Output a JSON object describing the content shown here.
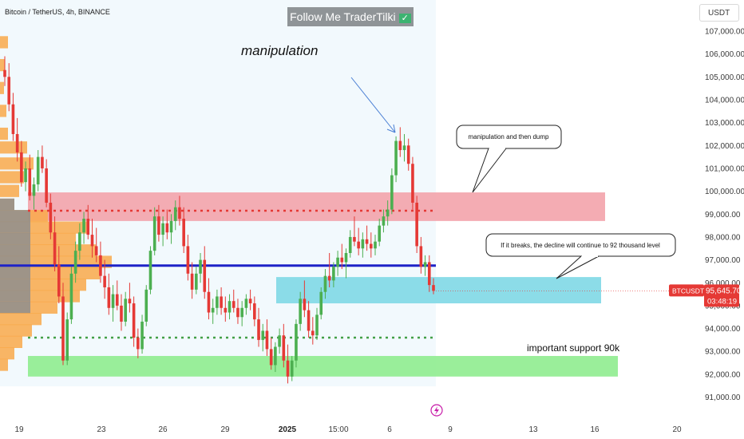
{
  "header": {
    "symbol_title": "Bitcoin / TetherUS, 4h, BINANCE",
    "follow_label": "Follow Me TraderTilki",
    "follow_check": "✓",
    "currency_button": "USDT"
  },
  "annotations": {
    "manipulation_title": "manipulation",
    "callout_1": "manipulation and then dump",
    "callout_2": "If it breaks, the decline will continue to 92 thousand level",
    "support_label": "important support 90k"
  },
  "price_badge": {
    "symbol": "BTCUSDT",
    "price": "95,645.70",
    "countdown": "03:48:19"
  },
  "colors": {
    "up": "#4caf50",
    "down": "#e53935",
    "resistance_zone": "#f3a3ab",
    "current_zone": "#7fd8e6",
    "support_zone": "#8fec8f",
    "blue_line": "#1e23c8",
    "volume_profile": "#f9a94a",
    "volume_profile_gray": "#8e8e8e",
    "badge": "#e53935"
  },
  "chart_data": {
    "type": "candlestick",
    "title": "Bitcoin / TetherUS, 4h, BINANCE",
    "xlabel": "",
    "ylabel": "",
    "ylim": [
      90500,
      107600
    ],
    "yticks": [
      91000,
      92000,
      93000,
      94000,
      95000,
      96000,
      97000,
      98000,
      99000,
      100000,
      101000,
      102000,
      103000,
      104000,
      105000,
      106000,
      107000
    ],
    "ytick_labels": [
      "91,000.00",
      "92,000.00",
      "93,000.00",
      "94,000.00",
      "95,000.00",
      "96,000.00",
      "97,000.00",
      "98,000.00",
      "99,000.00",
      "100,000.00",
      "101,000.00",
      "102,000.00",
      "103,000.00",
      "104,000.00",
      "105,000.00",
      "106,000.00",
      "107,000.00"
    ],
    "xticks": [
      "19",
      "23",
      "26",
      "29",
      "2025",
      "15:00",
      "6",
      "9",
      "13",
      "16",
      "20"
    ],
    "last_price": 95645.7,
    "levels": {
      "blue_line": 96750,
      "red_dotted": 99150,
      "green_dotted": 93600
    },
    "zones": [
      {
        "name": "resistance",
        "from": 98700,
        "to": 99950
      },
      {
        "name": "current",
        "from": 95100,
        "to": 96250
      },
      {
        "name": "support",
        "from": 91900,
        "to": 92800
      }
    ],
    "candles": [
      [
        105300,
        105900,
        104600,
        105000
      ],
      [
        105000,
        105600,
        103500,
        103800
      ],
      [
        103800,
        104300,
        102200,
        102500
      ],
      [
        102500,
        103200,
        101300,
        101700
      ],
      [
        101700,
        102200,
        100200,
        100400
      ],
      [
        100400,
        101300,
        100000,
        101000
      ],
      [
        101000,
        101600,
        99600,
        99800
      ],
      [
        99800,
        100600,
        99200,
        100300
      ],
      [
        100300,
        101800,
        100000,
        101500
      ],
      [
        101500,
        102000,
        100800,
        101000
      ],
      [
        101000,
        101400,
        99300,
        99500
      ],
      [
        99500,
        99900,
        97900,
        98200
      ],
      [
        98200,
        98900,
        96500,
        96800
      ],
      [
        96800,
        97600,
        95100,
        95400
      ],
      [
        95400,
        96000,
        92400,
        92600
      ],
      [
        92600,
        94700,
        92400,
        94400
      ],
      [
        94400,
        96700,
        94200,
        96400
      ],
      [
        96400,
        97800,
        96000,
        97400
      ],
      [
        97400,
        98600,
        97000,
        98200
      ],
      [
        98200,
        99100,
        97700,
        98800
      ],
      [
        98800,
        99400,
        97900,
        98100
      ],
      [
        98100,
        98800,
        97100,
        97600
      ],
      [
        97600,
        98400,
        96900,
        97200
      ],
      [
        97200,
        97800,
        96000,
        96300
      ],
      [
        96300,
        97000,
        95300,
        95800
      ],
      [
        95800,
        96400,
        94600,
        94900
      ],
      [
        94900,
        95900,
        94300,
        95500
      ],
      [
        95500,
        96100,
        94800,
        95000
      ],
      [
        95000,
        95500,
        93900,
        94300
      ],
      [
        94300,
        95600,
        94100,
        95300
      ],
      [
        95300,
        96000,
        94700,
        95100
      ],
      [
        95100,
        95400,
        93200,
        93600
      ],
      [
        93600,
        94000,
        92700,
        93100
      ],
      [
        93100,
        94600,
        92900,
        94300
      ],
      [
        94300,
        95900,
        94100,
        95700
      ],
      [
        95700,
        97600,
        95500,
        97400
      ],
      [
        97400,
        99300,
        97200,
        98900
      ],
      [
        98900,
        99400,
        97800,
        98100
      ],
      [
        98100,
        98900,
        97600,
        98600
      ],
      [
        98600,
        99200,
        97900,
        98200
      ],
      [
        98200,
        99000,
        97700,
        98700
      ],
      [
        98700,
        99600,
        98300,
        99300
      ],
      [
        99300,
        99800,
        98500,
        98800
      ],
      [
        98800,
        99300,
        97300,
        97600
      ],
      [
        97600,
        98100,
        96100,
        96400
      ],
      [
        96400,
        96900,
        95300,
        95700
      ],
      [
        95700,
        96700,
        95500,
        96400
      ],
      [
        96400,
        97300,
        96000,
        97000
      ],
      [
        97000,
        97600,
        95300,
        95600
      ],
      [
        95600,
        96200,
        94400,
        94700
      ],
      [
        94700,
        95300,
        94200,
        94900
      ],
      [
        94900,
        95700,
        94600,
        95400
      ],
      [
        95400,
        95800,
        94600,
        94900
      ],
      [
        94900,
        95400,
        94300,
        94700
      ],
      [
        94700,
        95500,
        94400,
        95200
      ],
      [
        95200,
        95700,
        94700,
        94900
      ],
      [
        94900,
        95300,
        94200,
        94500
      ],
      [
        94500,
        95200,
        94100,
        94900
      ],
      [
        94900,
        95500,
        94600,
        95300
      ],
      [
        95300,
        95700,
        94800,
        95100
      ],
      [
        95100,
        95400,
        94100,
        94400
      ],
      [
        94400,
        94900,
        93200,
        93500
      ],
      [
        93500,
        94200,
        93000,
        93900
      ],
      [
        93900,
        94400,
        92800,
        93100
      ],
      [
        93100,
        93600,
        92200,
        92400
      ],
      [
        92400,
        93400,
        92100,
        93200
      ],
      [
        93200,
        94000,
        92900,
        93700
      ],
      [
        93700,
        94200,
        92300,
        92600
      ],
      [
        92600,
        93300,
        91600,
        91900
      ],
      [
        91900,
        92800,
        91700,
        92600
      ],
      [
        92600,
        94400,
        92300,
        94200
      ],
      [
        94200,
        95600,
        93900,
        95300
      ],
      [
        95300,
        96100,
        94500,
        94800
      ],
      [
        94800,
        95200,
        93600,
        93900
      ],
      [
        93900,
        94500,
        93300,
        93700
      ],
      [
        93700,
        94900,
        93500,
        94600
      ],
      [
        94600,
        95800,
        94400,
        95600
      ],
      [
        95600,
        96600,
        95300,
        96300
      ],
      [
        96300,
        97300,
        95800,
        96100
      ],
      [
        96100,
        96900,
        95800,
        96700
      ],
      [
        96700,
        97400,
        96300,
        97100
      ],
      [
        97100,
        97700,
        96600,
        96900
      ],
      [
        96900,
        97500,
        96200,
        97300
      ],
      [
        97300,
        98300,
        97100,
        98000
      ],
      [
        98000,
        98900,
        97600,
        97800
      ],
      [
        97800,
        98400,
        97200,
        97500
      ],
      [
        97500,
        98200,
        97100,
        97900
      ],
      [
        97900,
        98500,
        97400,
        97700
      ],
      [
        97700,
        98200,
        97100,
        97500
      ],
      [
        97500,
        98100,
        97200,
        97800
      ],
      [
        97800,
        98800,
        97600,
        98500
      ],
      [
        98500,
        99200,
        98200,
        98900
      ],
      [
        98900,
        99600,
        98500,
        99200
      ],
      [
        99200,
        101000,
        99000,
        100700
      ],
      [
        100700,
        102400,
        100400,
        102200
      ],
      [
        102200,
        102800,
        101500,
        101800
      ],
      [
        101800,
        102500,
        101300,
        102000
      ],
      [
        102000,
        102300,
        100900,
        101200
      ],
      [
        101200,
        101500,
        99200,
        99500
      ],
      [
        99500,
        99800,
        97300,
        97600
      ],
      [
        97600,
        98000,
        96400,
        96700
      ],
      [
        96700,
        97200,
        96300,
        96900
      ],
      [
        96900,
        97200,
        95600,
        95900
      ],
      [
        95900,
        96200,
        95500,
        95646
      ]
    ],
    "volume_profile": [
      {
        "price": 106500,
        "size": 10
      },
      {
        "price": 105500,
        "size": 6
      },
      {
        "price": 104500,
        "size": 5
      },
      {
        "price": 103500,
        "size": 8
      },
      {
        "price": 102500,
        "size": 10
      },
      {
        "price": 101900,
        "size": 34
      },
      {
        "price": 101200,
        "size": 42
      },
      {
        "price": 100600,
        "size": 30
      },
      {
        "price": 100000,
        "size": 24
      },
      {
        "price": 99400,
        "size": 18
      },
      {
        "price": 98900,
        "size": 60
      },
      {
        "price": 98400,
        "size": 110
      },
      {
        "price": 97900,
        "size": 95
      },
      {
        "price": 97400,
        "size": 120
      },
      {
        "price": 96900,
        "size": 140
      },
      {
        "price": 96400,
        "size": 125
      },
      {
        "price": 95900,
        "size": 108
      },
      {
        "price": 95400,
        "size": 100
      },
      {
        "price": 94900,
        "size": 72
      },
      {
        "price": 94400,
        "size": 52
      },
      {
        "price": 93900,
        "size": 40
      },
      {
        "price": 93400,
        "size": 28
      },
      {
        "price": 92900,
        "size": 18
      },
      {
        "price": 92400,
        "size": 10
      }
    ]
  }
}
